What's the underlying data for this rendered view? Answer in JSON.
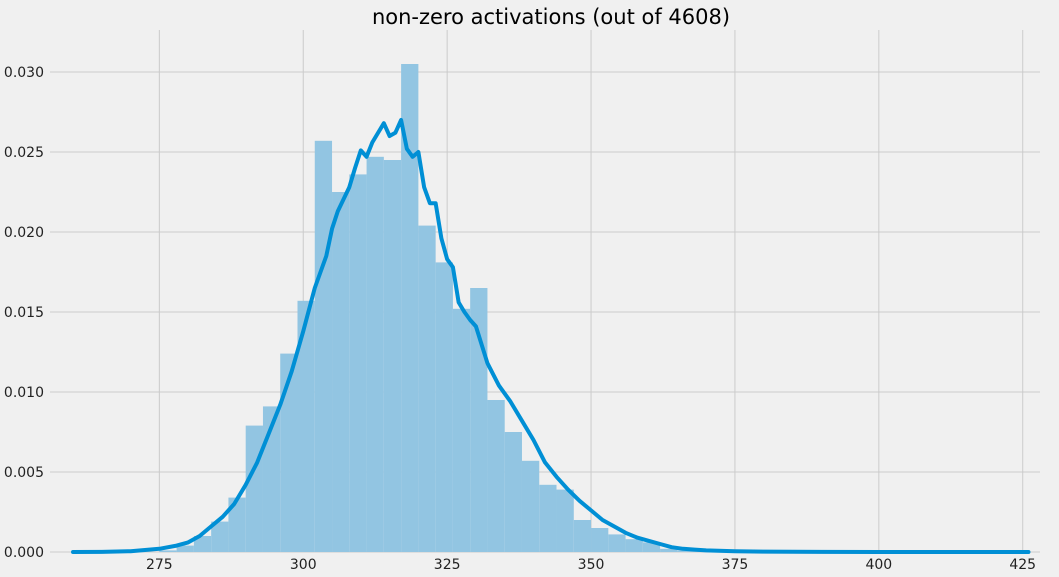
{
  "chart_data": {
    "type": "bar",
    "title": "non-zero activations (out of 4608)",
    "xlabel": "",
    "ylabel": "",
    "xlim": [
      256,
      428
    ],
    "ylim": [
      0,
      0.032
    ],
    "x_ticks": [
      275,
      300,
      325,
      350,
      375,
      400,
      425
    ],
    "x_tick_labels": [
      "275",
      "300",
      "325",
      "350",
      "375",
      "400",
      "425"
    ],
    "y_ticks": [
      0,
      0.005,
      0.01,
      0.015,
      0.02,
      0.025,
      0.03
    ],
    "y_tick_labels": [
      "0.000",
      "0.005",
      "0.010",
      "0.015",
      "0.020",
      "0.025",
      "0.030"
    ],
    "grid": true,
    "histogram": {
      "bin_edges": [
        275,
        278,
        281,
        284,
        287,
        290,
        293,
        296,
        299,
        302,
        305,
        308,
        311,
        314,
        317,
        320,
        323,
        326,
        329,
        332,
        335,
        338,
        341,
        344,
        347,
        350,
        353,
        356,
        359,
        362,
        365,
        368,
        371
      ],
      "density": [
        0.0001,
        0.0004,
        0.001,
        0.0019,
        0.0034,
        0.0079,
        0.0091,
        0.0124,
        0.0157,
        0.0257,
        0.0225,
        0.0236,
        0.0247,
        0.0245,
        0.0305,
        0.0204,
        0.0181,
        0.0152,
        0.0165,
        0.0095,
        0.0075,
        0.0057,
        0.0042,
        0.0039,
        0.002,
        0.0015,
        0.0011,
        0.0008,
        0.0006,
        0.0002,
        0.0001,
        0.0001
      ],
      "color": "#92c5e2"
    },
    "kde": {
      "x": [
        260,
        265,
        270,
        275,
        278,
        280,
        282,
        284,
        286,
        288,
        290,
        292,
        294,
        296,
        298,
        300,
        302,
        304,
        305,
        306,
        308,
        309,
        310,
        311,
        312,
        314,
        315,
        316,
        317,
        318,
        319,
        320,
        321,
        322,
        323,
        324,
        325,
        326,
        327,
        328,
        329,
        330,
        332,
        334,
        336,
        338,
        340,
        342,
        344,
        346,
        348,
        350,
        352,
        354,
        356,
        358,
        360,
        362,
        364,
        366,
        368,
        370,
        375,
        380,
        390,
        400,
        410,
        420,
        426
      ],
      "y": [
        0,
        1e-05,
        5e-05,
        0.0002,
        0.0004,
        0.0006,
        0.001,
        0.0016,
        0.0022,
        0.003,
        0.0042,
        0.0056,
        0.0074,
        0.0092,
        0.0113,
        0.0138,
        0.0165,
        0.0185,
        0.0202,
        0.0213,
        0.0228,
        0.024,
        0.0251,
        0.0247,
        0.0256,
        0.0268,
        0.026,
        0.0262,
        0.027,
        0.0252,
        0.0247,
        0.025,
        0.0228,
        0.0218,
        0.0218,
        0.0196,
        0.0183,
        0.0178,
        0.0156,
        0.015,
        0.0145,
        0.0141,
        0.0118,
        0.0104,
        0.0094,
        0.0082,
        0.007,
        0.0056,
        0.0047,
        0.0039,
        0.0032,
        0.0026,
        0.002,
        0.0016,
        0.0012,
        0.0009,
        0.0007,
        0.0005,
        0.0003,
        0.0002,
        0.00015,
        0.0001,
        5e-05,
        2e-05,
        1e-05,
        0,
        0,
        0,
        0
      ],
      "color": "#008fd5"
    }
  }
}
